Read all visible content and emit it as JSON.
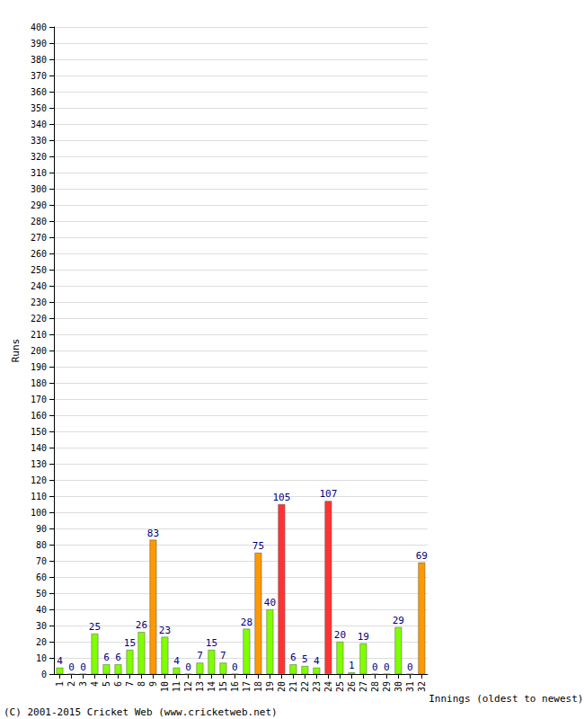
{
  "chart_data": {
    "type": "bar",
    "x_label": "Innings (oldest to newest)",
    "y_label": "Runs",
    "annotations": [
      "(C) 2001-2015 Cricket Web (www.cricketweb.net)"
    ],
    "categories": [
      "1",
      "2",
      "3",
      "4",
      "5",
      "6",
      "7",
      "8",
      "9",
      "10",
      "11",
      "12",
      "13",
      "14",
      "15",
      "16",
      "17",
      "18",
      "19",
      "20",
      "21",
      "22",
      "23",
      "24",
      "25",
      "26",
      "27",
      "28",
      "29",
      "30",
      "31",
      "32"
    ],
    "values": [
      4,
      0,
      0,
      25,
      6,
      6,
      15,
      26,
      83,
      23,
      4,
      0,
      7,
      15,
      7,
      0,
      28,
      75,
      40,
      105,
      6,
      5,
      4,
      107,
      20,
      1,
      19,
      0,
      0,
      29,
      0,
      69
    ],
    "colors": [
      "#80ff00",
      "#80ff00",
      "#80ff00",
      "#80ff00",
      "#80ff00",
      "#80ff00",
      "#80ff00",
      "#80ff00",
      "#ff9900",
      "#80ff00",
      "#80ff00",
      "#80ff00",
      "#80ff00",
      "#80ff00",
      "#80ff00",
      "#80ff00",
      "#80ff00",
      "#ff9900",
      "#80ff00",
      "#ff3333",
      "#80ff00",
      "#80ff00",
      "#80ff00",
      "#ff3333",
      "#80ff00",
      "#80ff00",
      "#80ff00",
      "#80ff00",
      "#80ff00",
      "#80ff00",
      "#80ff00",
      "#ff9900"
    ],
    "ylim": [
      0,
      400
    ],
    "yticks": [
      0,
      10,
      20,
      30,
      40,
      50,
      60,
      70,
      80,
      90,
      100,
      110,
      120,
      130,
      140,
      150,
      160,
      170,
      180,
      190,
      200,
      210,
      220,
      230,
      240,
      250,
      260,
      270,
      280,
      290,
      300,
      310,
      320,
      330,
      340,
      350,
      360,
      370,
      380,
      390,
      400
    ],
    "grid": true,
    "data_labels": true
  }
}
